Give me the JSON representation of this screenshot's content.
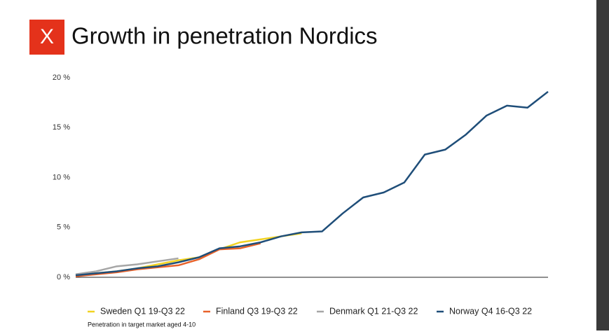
{
  "chart_data": {
    "type": "line",
    "logo": "X",
    "title": "Growth in penetration Nordics",
    "footnote": "Penetration in target market aged 4-10",
    "categories": [
      null,
      null,
      null,
      null,
      null,
      null,
      null,
      null,
      null,
      null,
      null,
      null,
      null,
      null,
      null,
      null,
      null,
      null,
      null,
      null,
      null,
      null,
      null,
      null
    ],
    "ylim": [
      0,
      20
    ],
    "yticks": [
      {
        "value": 0,
        "label": "0 %"
      },
      {
        "value": 5,
        "label": "5 %"
      },
      {
        "value": 10,
        "label": "10 %"
      },
      {
        "value": 15,
        "label": "15 %"
      },
      {
        "value": 20,
        "label": "20 %"
      }
    ],
    "series": [
      {
        "name": "Sweden Q1 19-Q3 22",
        "color": "#f2d322",
        "values": [
          0.2,
          0.4,
          0.6,
          0.9,
          1.3,
          1.7,
          2.0,
          2.8,
          3.5,
          3.8,
          4.1,
          4.4,
          null,
          null,
          null,
          null,
          null,
          null,
          null,
          null,
          null,
          null,
          null,
          null
        ]
      },
      {
        "name": "Finland Q3 19-Q3 22",
        "color": "#e8622a",
        "values": [
          0.1,
          0.3,
          0.5,
          0.8,
          1.0,
          1.2,
          1.8,
          2.8,
          2.9,
          3.4,
          null,
          null,
          null,
          null,
          null,
          null,
          null,
          null,
          null,
          null,
          null,
          null,
          null,
          null
        ]
      },
      {
        "name": "Denmark Q1 21-Q3 22",
        "color": "#a6a6a6",
        "values": [
          0.3,
          0.6,
          1.1,
          1.3,
          1.6,
          1.9,
          null,
          null,
          null,
          null,
          null,
          null,
          null,
          null,
          null,
          null,
          null,
          null,
          null,
          null,
          null,
          null,
          null,
          null
        ]
      },
      {
        "name": "Norway Q4 16-Q3 22",
        "color": "#1f4e79",
        "values": [
          0.2,
          0.4,
          0.6,
          0.9,
          1.1,
          1.5,
          2.0,
          2.9,
          3.1,
          3.5,
          4.1,
          4.5,
          4.6,
          6.4,
          8.0,
          8.5,
          9.5,
          12.3,
          12.8,
          14.3,
          16.2,
          17.2,
          17.0,
          18.6
        ]
      }
    ]
  }
}
